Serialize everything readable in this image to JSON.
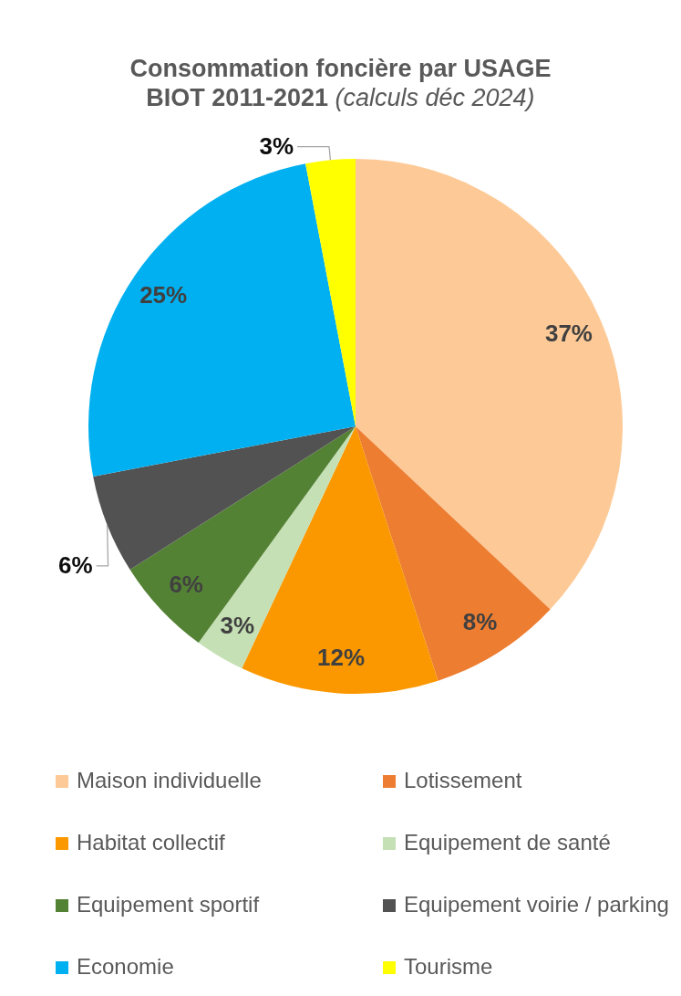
{
  "chart_data": {
    "type": "pie",
    "title": "Consommation foncière par USAGE",
    "subtitle": "BIOT 2011-2021 (calculs déc 2024)",
    "categories": [
      "Maison individuelle",
      "Lotissement",
      "Habitat collectif",
      "Equipement de santé",
      "Equipement sportif",
      "Equipement voirie / parking",
      "Economie",
      "Tourisme"
    ],
    "values": [
      37,
      8,
      12,
      3,
      6,
      6,
      25,
      3
    ],
    "colors": [
      "#fdca97",
      "#ed7d31",
      "#fb9800",
      "#c5e0b4",
      "#548235",
      "#525252",
      "#00b0f0",
      "#ffff00"
    ],
    "value_labels": [
      "37%",
      "8%",
      "12%",
      "3%",
      "6%",
      "6%",
      "25%",
      "3%"
    ],
    "legend": "bottom"
  }
}
